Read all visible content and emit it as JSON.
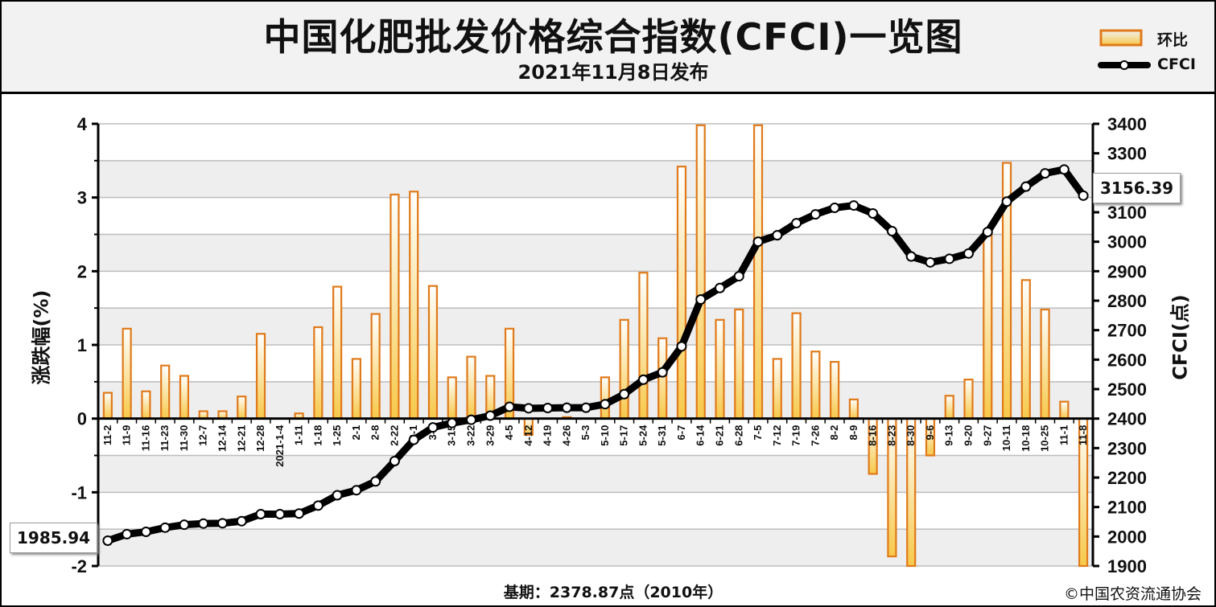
{
  "title": "中国化肥批发价格综合指数(CFCI)一览图",
  "subtitle": "2021年11月8日发布",
  "legend": {
    "bar_label": "环比",
    "line_label": "CFCI"
  },
  "left_axis_title": "涨跌幅(%)",
  "right_axis_title": "CFCI(点)",
  "baseline_note": "基期：2378.87点（2010年）",
  "copyright": "©中国农资流通协会",
  "callouts": {
    "start": "1985.94",
    "end": "3156.39"
  },
  "colors": {
    "bar_fill_top": "#ffffff",
    "bar_fill_bottom": "#f7c94a",
    "bar_stroke": "#e07a1a",
    "line": "#000000",
    "grid": "#bdbdbd",
    "band": "#eeeeee"
  },
  "chart_data": {
    "type": "bar",
    "categories": [
      "11-2",
      "11-9",
      "11-16",
      "11-23",
      "11-30",
      "12-7",
      "12-14",
      "12-21",
      "12-28",
      "2021-1-4",
      "1-11",
      "1-18",
      "1-25",
      "2-1",
      "2-8",
      "2-22",
      "3-1",
      "3-8",
      "3-15",
      "3-22",
      "3-29",
      "4-5",
      "4-12",
      "4-19",
      "4-26",
      "5-3",
      "5-10",
      "5-17",
      "5-24",
      "5-31",
      "6-7",
      "6-14",
      "6-21",
      "6-28",
      "7-5",
      "7-12",
      "7-19",
      "7-26",
      "8-2",
      "8-9",
      "8-16",
      "8-23",
      "8-30",
      "9-6",
      "9-13",
      "9-20",
      "9-27",
      "10-11",
      "10-18",
      "10-25",
      "11-1",
      "11-8"
    ],
    "series": [
      {
        "name": "环比",
        "type": "bar",
        "axis": "left",
        "values": [
          0.35,
          1.22,
          0.37,
          0.72,
          0.58,
          0.1,
          0.1,
          0.3,
          1.15,
          0,
          0.07,
          1.24,
          1.79,
          0.81,
          1.42,
          3.04,
          3.08,
          1.8,
          0.56,
          0.84,
          0.58,
          1.22,
          -0.22,
          0,
          0.02,
          0,
          0.56,
          1.34,
          1.98,
          1.09,
          3.42,
          3.98,
          1.34,
          1.48,
          3.98,
          0.81,
          1.43,
          0.91,
          0.77,
          0.26,
          -0.75,
          -1.87,
          -2.0,
          -0.5,
          0.31,
          0.53,
          2.5,
          3.47,
          1.88,
          1.48,
          0.23,
          -2.0
        ]
      },
      {
        "name": "CFCI",
        "type": "line",
        "axis": "right",
        "values": [
          1985.94,
          2008,
          2016,
          2030,
          2040,
          2044,
          2045,
          2052,
          2076,
          2076,
          2078,
          2105,
          2140,
          2157,
          2187,
          2256,
          2328,
          2370,
          2385,
          2396,
          2410,
          2440,
          2435,
          2436,
          2437,
          2437,
          2449,
          2483,
          2532,
          2557,
          2645,
          2804,
          2843,
          2883,
          3000,
          3022,
          3063,
          3093,
          3115,
          3123,
          3096,
          3036,
          2950,
          2930,
          2942,
          2960,
          3033,
          3136,
          3187,
          3232,
          3245,
          3156.39
        ]
      }
    ],
    "left_axis": {
      "min": -2,
      "max": 4,
      "ticks": [
        "-2",
        "-1",
        "0",
        "1",
        "2",
        "3",
        "4"
      ]
    },
    "right_axis": {
      "min": 1900,
      "max": 3400,
      "ticks": [
        "1900",
        "2000",
        "2100",
        "2200",
        "2300",
        "2400",
        "2500",
        "2600",
        "2700",
        "2800",
        "2900",
        "3000",
        "3100",
        "3200",
        "3300",
        "3400"
      ]
    },
    "grid": true,
    "legend_position": "top-right"
  }
}
